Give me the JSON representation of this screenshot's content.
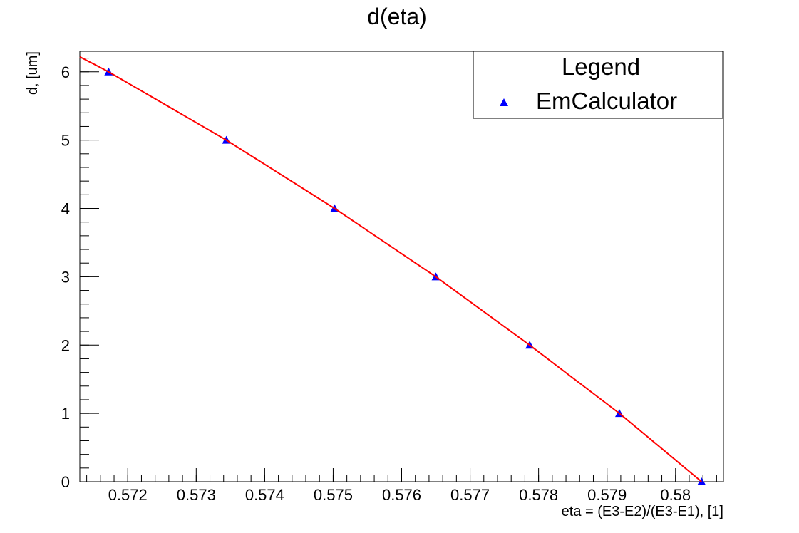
{
  "chart_data": {
    "type": "scatter",
    "title": "d(eta)",
    "xlabel": "eta = (E3-E2)/(E3-E1), [1]",
    "ylabel": "d, [um]",
    "xlim": [
      0.5713,
      0.5807
    ],
    "ylim": [
      0,
      6.3
    ],
    "x_ticks": [
      0.572,
      0.573,
      0.574,
      0.575,
      0.576,
      0.577,
      0.578,
      0.579,
      0.58
    ],
    "x_tick_labels": [
      "0.572",
      "0.573",
      "0.574",
      "0.575",
      "0.576",
      "0.577",
      "0.578",
      "0.579",
      "0.58"
    ],
    "y_ticks": [
      0,
      1,
      2,
      3,
      4,
      5,
      6
    ],
    "y_tick_labels": [
      "0",
      "1",
      "2",
      "3",
      "4",
      "5",
      "6"
    ],
    "grid": false,
    "legend": {
      "title": "Legend",
      "placement": "top-right",
      "entries": [
        "EmCalculator"
      ]
    },
    "series": [
      {
        "name": "EmCalculator",
        "kind": "markers",
        "marker": "triangle",
        "color": "#0000ff",
        "points": [
          {
            "x": 0.57172,
            "y": 6
          },
          {
            "x": 0.57344,
            "y": 5
          },
          {
            "x": 0.57502,
            "y": 4
          },
          {
            "x": 0.5765,
            "y": 3
          },
          {
            "x": 0.57787,
            "y": 2
          },
          {
            "x": 0.57918,
            "y": 1
          },
          {
            "x": 0.58038,
            "y": 0
          }
        ]
      },
      {
        "kind": "line",
        "color": "#ff0000",
        "points": [
          {
            "x": 0.5713,
            "y": 6.22
          },
          {
            "x": 0.57172,
            "y": 6
          },
          {
            "x": 0.57344,
            "y": 5
          },
          {
            "x": 0.57502,
            "y": 4
          },
          {
            "x": 0.5765,
            "y": 3
          },
          {
            "x": 0.57787,
            "y": 2
          },
          {
            "x": 0.57918,
            "y": 1
          },
          {
            "x": 0.58038,
            "y": 0
          }
        ]
      }
    ]
  }
}
